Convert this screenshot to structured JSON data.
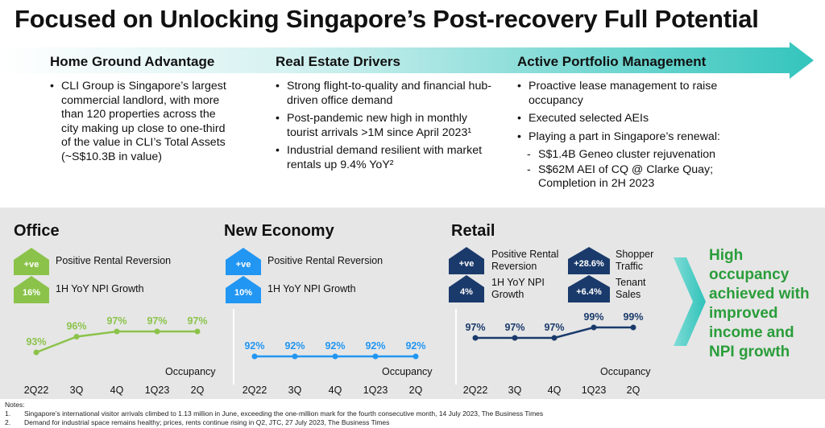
{
  "title": "Focused on Unlocking Singapore’s Post-recovery Full Potential",
  "pillars": [
    {
      "heading": "Home Ground Advantage",
      "bullets": [
        "CLI Group is Singapore’s largest commercial landlord, with more than 120 properties across the city making up close to one-third of the value in CLI’s Total Assets (~S$10.3B in value)"
      ]
    },
    {
      "heading": "Real Estate Drivers",
      "bullets": [
        "Strong flight-to-quality and financial hub-driven office demand",
        "Post-pandemic new high in monthly tourist arrivals >1M since April 2023¹",
        "Industrial demand resilient with market rentals up 9.4% YoY²"
      ]
    },
    {
      "heading": "Active Portfolio Management",
      "bullets": [
        "Proactive lease management to raise occupancy",
        "Executed selected AEIs",
        "Playing a part in Singapore’s renewal:"
      ],
      "subbullets": [
        "S$1.4B Geneo cluster rejuvenation",
        "S$62M AEI of CQ @ Clarke Quay; Completion in 2H 2023"
      ]
    }
  ],
  "segments": [
    {
      "name": "Office",
      "color": "#8bc34a",
      "metrics": [
        {
          "badge": "+ve",
          "label": "Positive Rental Reversion"
        },
        {
          "badge": "16%",
          "label": "1H YoY NPI Growth"
        }
      ]
    },
    {
      "name": "New Economy",
      "color": "#2196f3",
      "metrics": [
        {
          "badge": "+ve",
          "label": "Positive Rental Reversion"
        },
        {
          "badge": "10%",
          "label": "1H YoY NPI Growth"
        }
      ]
    },
    {
      "name": "Retail",
      "color": "#1a3a6b",
      "metrics": [
        {
          "badge": "+ve",
          "label": "Positive Rental Reversion"
        },
        {
          "badge": "4%",
          "label": "1H YoY NPI Growth"
        },
        {
          "badge": "+28.6%",
          "label": "Shopper Traffic"
        },
        {
          "badge": "+6.4%",
          "label": "Tenant Sales"
        }
      ]
    }
  ],
  "chart_data": [
    {
      "type": "line",
      "xlabel": "Occupancy",
      "categories": [
        "2Q22",
        "3Q",
        "4Q",
        "1Q23",
        "2Q"
      ],
      "values": [
        93,
        96,
        97,
        97,
        97
      ],
      "value_labels": [
        "93%",
        "96%",
        "97%",
        "97%",
        "97%"
      ],
      "color": "#8bc34a"
    },
    {
      "type": "line",
      "xlabel": "Occupancy",
      "categories": [
        "2Q22",
        "3Q",
        "4Q",
        "1Q23",
        "2Q"
      ],
      "values": [
        92,
        92,
        92,
        92,
        92
      ],
      "value_labels": [
        "92%",
        "92%",
        "92%",
        "92%",
        "92%"
      ],
      "color": "#2196f3"
    },
    {
      "type": "line",
      "xlabel": "Occupancy",
      "categories": [
        "2Q22",
        "3Q",
        "4Q",
        "1Q23",
        "2Q"
      ],
      "values": [
        97,
        97,
        97,
        99,
        99
      ],
      "value_labels": [
        "97%",
        "97%",
        "97%",
        "99%",
        "99%"
      ],
      "color": "#1a3a6b"
    }
  ],
  "callout": [
    "High",
    "occupancy",
    "achieved with",
    "improved",
    "income and",
    "NPI growth"
  ],
  "notes": {
    "heading": "Notes:",
    "items": [
      {
        "num": "1.",
        "text": "Singapore’s international visitor arrivals climbed to 1.13 million in June, exceeding the one-million mark for the fourth consecutive month, 14 July 2023, The Business Times"
      },
      {
        "num": "2.",
        "text": "Demand for industrial space remains healthy; prices, rents continue rising in Q2, JTC, 27 July 2023, The Business Times"
      }
    ]
  }
}
